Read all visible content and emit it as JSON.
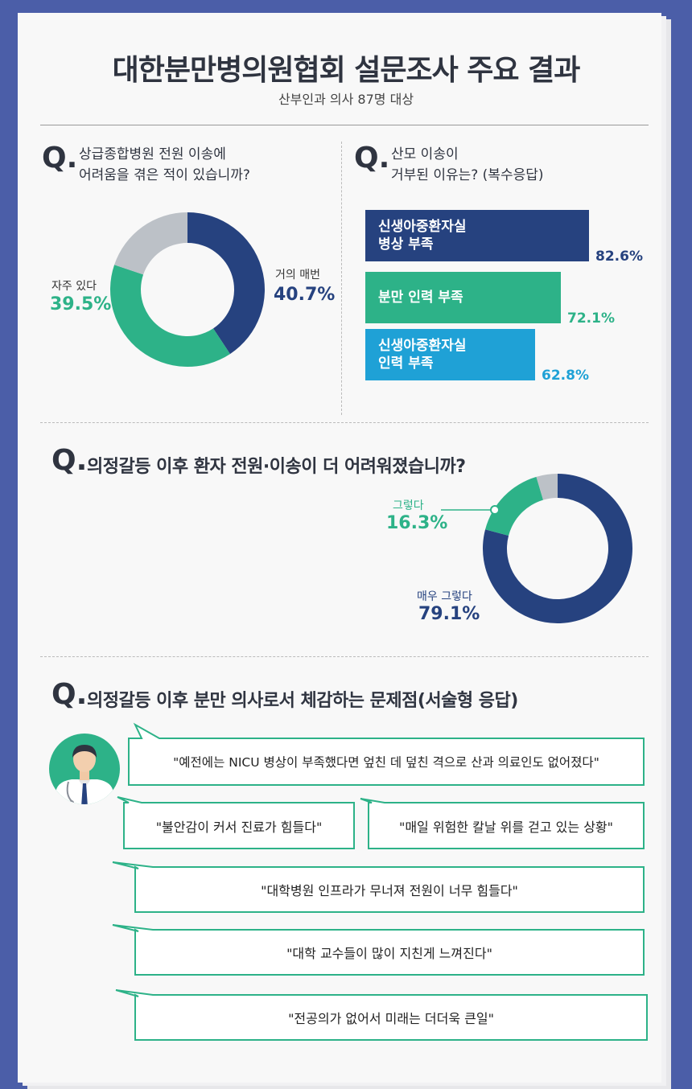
{
  "title": "대한분만병의원협회 설문조사 주요 결과",
  "subtitle": "산부인과 의사 87명 대상",
  "q_mark": "Q.",
  "colors": {
    "navy": "#26427f",
    "green": "#2db288",
    "gray": "#bcc1c7",
    "blue": "#1fa1d6",
    "bubble_border": "#2db288"
  },
  "q1": {
    "question_line1": "상급종합병원 전원 이송에",
    "question_line2": "어려움을 겪은 적이 있습니까?"
  },
  "q2": {
    "question_line1": "산모 이송이",
    "question_line2": "거부된 이유는? (복수응답)"
  },
  "q3": {
    "question": "의정갈등 이후 환자 전원·이송이 더 어려워졌습니까?"
  },
  "q4": {
    "question": "의정갈등 이후 분만 의사로서 체감하는 문제점(서술형 응답)"
  },
  "quotes": [
    "\"예전에는 NICU 병상이 부족했다면 엎친 데 덮친 격으로 산과 의료인도 없어졌다\"",
    "\"불안감이 커서 진료가 힘들다\"",
    "\"매일 위험한 칼날 위를 걷고 있는 상황\"",
    "\"대학병원 인프라가 무너져 전원이 너무 힘들다\"",
    "\"대학 교수들이 많이 지친게 느껴진다\"",
    "\"전공의가 없어서 미래는 더더욱 큰일\""
  ],
  "chart_data": [
    {
      "type": "pie",
      "title": "상급종합병원 전원 이송에 어려움을 겪은 적이 있습니까?",
      "slices": [
        {
          "label": "거의 매번",
          "value": 40.7,
          "value_label": "40.7%",
          "color": "#26427f"
        },
        {
          "label": "자주 있다",
          "value": 39.5,
          "value_label": "39.5%",
          "color": "#2db288"
        },
        {
          "label": "",
          "value": 19.8,
          "value_label": "",
          "color": "#bcc1c7"
        }
      ]
    },
    {
      "type": "bar",
      "title": "산모 이송이 거부된 이유는? (복수응답)",
      "categories": [
        [
          "신생아중환자실",
          "병상 부족"
        ],
        [
          "분만 인력 부족"
        ],
        [
          "신생아중환자실",
          "인력 부족"
        ]
      ],
      "values": [
        82.6,
        72.1,
        62.8
      ],
      "value_labels": [
        "82.6%",
        "72.1%",
        "62.8%"
      ],
      "colors": [
        "#26427f",
        "#2db288",
        "#1fa1d6"
      ],
      "xlim": [
        0,
        100
      ]
    },
    {
      "type": "pie",
      "title": "의정갈등 이후 환자 전원·이송이 더 어려워졌습니까?",
      "slices": [
        {
          "label": "매우 그렇다",
          "value": 79.1,
          "value_label": "79.1%",
          "color": "#26427f"
        },
        {
          "label": "그렇다",
          "value": 16.3,
          "value_label": "16.3%",
          "color": "#2db288"
        },
        {
          "label": "",
          "value": 4.6,
          "value_label": "",
          "color": "#bcc1c7"
        }
      ]
    }
  ]
}
